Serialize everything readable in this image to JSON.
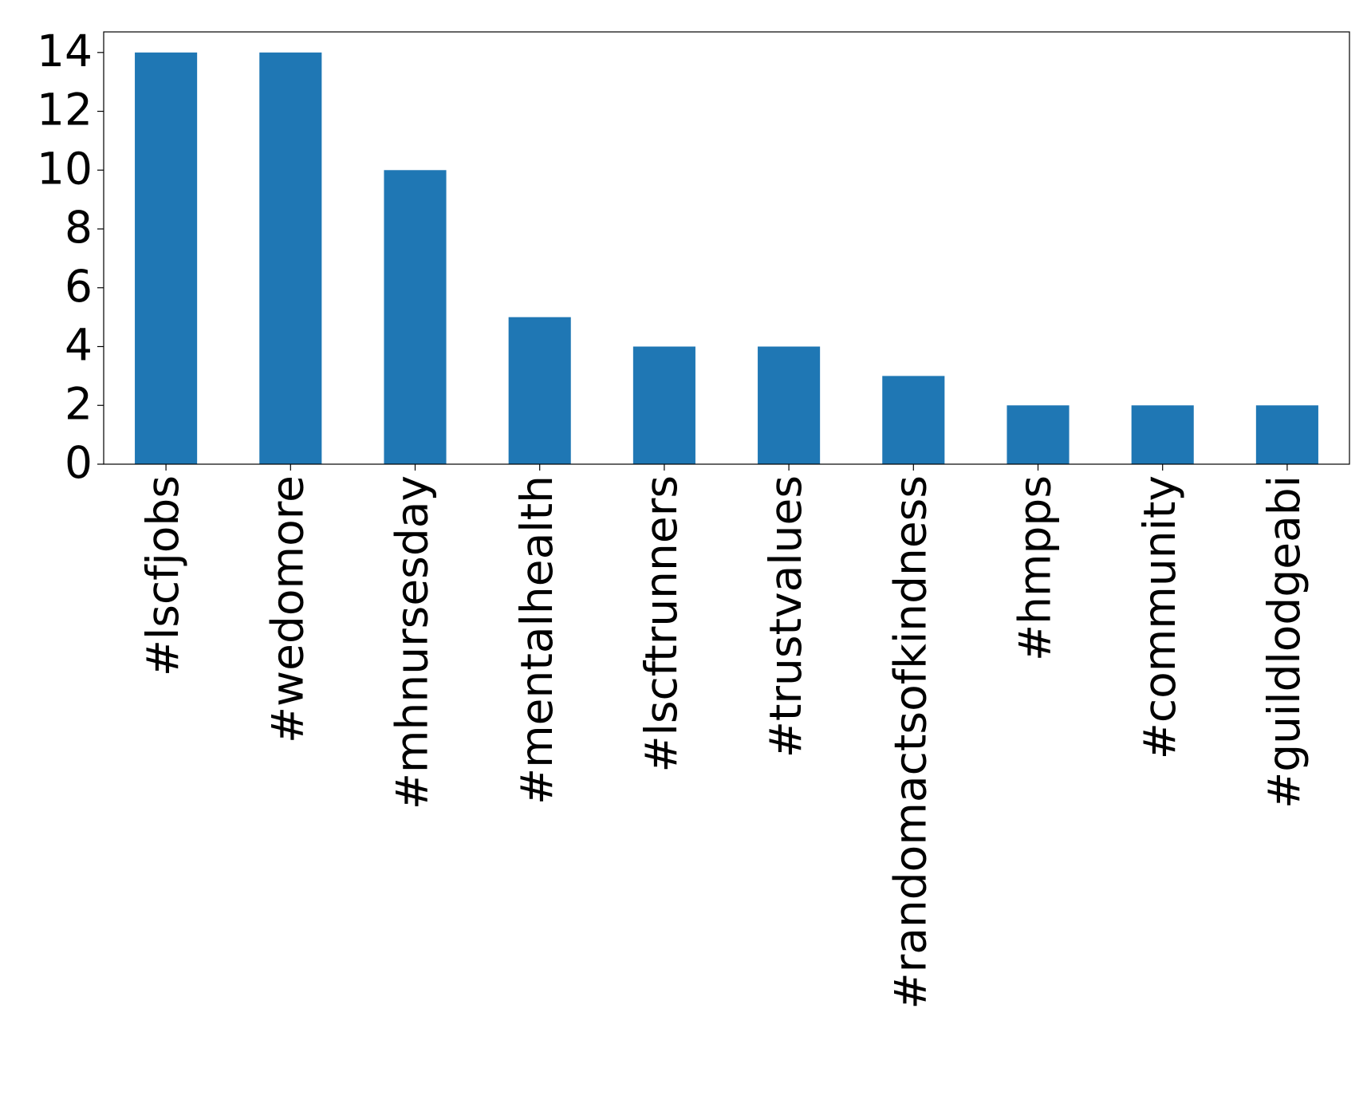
{
  "chart_data": {
    "type": "bar",
    "categories": [
      "#lscfjobs",
      "#wedomore",
      "#mhnursesday",
      "#mentalhealth",
      "#lscftrunners",
      "#trustvalues",
      "#randomactsofkindness",
      "#hmpps",
      "#community",
      "#guildlodgeabi"
    ],
    "values": [
      14,
      14,
      10,
      5,
      4,
      4,
      3,
      2,
      2,
      2
    ],
    "color": "#1f77b4",
    "ylim": [
      0,
      14.7
    ],
    "yticks": [
      0,
      2,
      4,
      6,
      8,
      10,
      12,
      14
    ],
    "grid": false
  }
}
